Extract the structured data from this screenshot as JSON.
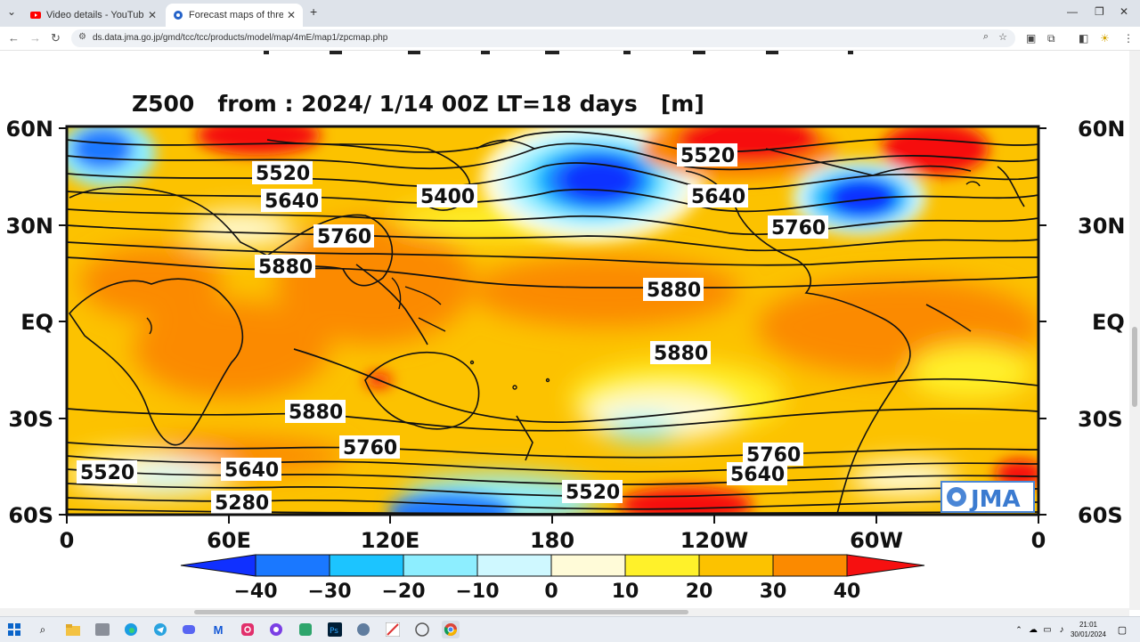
{
  "browser": {
    "tabs": [
      {
        "label": "Video details - YouTube Studio",
        "active": false,
        "icon": "youtube-icon"
      },
      {
        "label": "Forecast maps of three-month",
        "active": true,
        "icon": "jma-site-icon"
      }
    ],
    "new_tab_label": "+",
    "url": "ds.data.jma.go.jp/gmd/tcc/tcc/products/model/map/4mE/map1/zpcmap.php"
  },
  "map": {
    "title": "Z500   from : 2024/ 1/14 00Z LT=18 days   [m]",
    "lat_labels": [
      "60N",
      "30N",
      "EQ",
      "30S",
      "60S"
    ],
    "lon_labels": [
      "0",
      "60E",
      "120E",
      "180",
      "120W",
      "60W",
      "0"
    ],
    "contour_labels": [
      "5520",
      "5640",
      "5760",
      "5880",
      "5400",
      "5520",
      "5640",
      "5760",
      "5880",
      "5880",
      "5880",
      "5760",
      "5640",
      "5520",
      "5280",
      "5520",
      "5760",
      "5640"
    ],
    "logo_text": "JMA",
    "colorbar": {
      "ticks": [
        "−40",
        "−30",
        "−20",
        "−10",
        "0",
        "10",
        "20",
        "30",
        "40"
      ],
      "colors": [
        "#1030ff",
        "#1a78ff",
        "#1cc4ff",
        "#8deeff",
        "#cff8ff",
        "#fffbd8",
        "#fff12a",
        "#fcc200",
        "#fb8a00",
        "#f61010"
      ]
    }
  },
  "taskbar": {
    "time": "21:01",
    "date": "30/01/2024"
  }
}
